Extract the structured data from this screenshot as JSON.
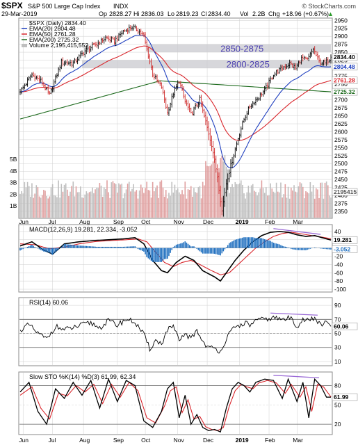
{
  "header": {
    "symbol": "$SPX",
    "name": "S&P 500 Large Cap Index",
    "exchange": "INDX",
    "watermark": "© StockCharts.com",
    "date": "29-Mar-2019",
    "op_label": "Op",
    "op": "2828.27",
    "hi_label": "Hi",
    "hi": "2836.03",
    "lo_label": "Lo",
    "lo": "2819.23",
    "cl_label": "Cl",
    "cl": "2834.40",
    "vol_label": "Vol",
    "vol": "2.2B",
    "chg_label": "Chg",
    "chg": "+18.96 (+0.67%)",
    "up_arrow": "▲"
  },
  "colors": {
    "price": "#000000",
    "ema20": "#1f3fbf",
    "ema50": "#d9252b",
    "ema200": "#1e6b1e",
    "zone": "#c9c9cf",
    "zone_text": "#4a3fb0",
    "vol_up": "#bfbfbf",
    "vol_down": "#e0a0a0",
    "macd": "#000000",
    "signal": "#d9252b",
    "hist": "#1f6fbf",
    "rsi": "#000000",
    "stok": "#000000",
    "stod": "#d9252b",
    "divergence": "#9a6ad6",
    "grid": "#cfcfcf"
  },
  "chart_data": [
    {
      "type": "line",
      "panel": "price",
      "title": "$SPX (Daily) 2834.40",
      "y_range": [
        2330,
        2955
      ],
      "y_ticks": [
        2350,
        2375,
        2400,
        2425,
        2450,
        2475,
        2500,
        2525,
        2550,
        2575,
        2600,
        2625,
        2650,
        2675,
        2700,
        2725,
        2750,
        2775,
        2800,
        2825,
        2850,
        2875,
        2900,
        2925,
        2950
      ],
      "y_tick_labels": [
        "2350",
        "2375",
        "2400",
        "2425",
        "2450",
        "2475",
        "2500",
        "2525",
        "2550",
        "2575",
        "2600",
        "2625",
        "2650",
        "2675",
        "2700",
        "2725",
        "2750",
        "2775",
        "2800",
        "2825",
        "2850",
        "2875",
        "2900",
        "2925",
        "2950"
      ],
      "x_labels": [
        "Jun",
        "Jul",
        "Aug",
        "Sep",
        "Oct",
        "Nov",
        "Dec",
        "2019",
        "Feb",
        "Mar"
      ],
      "x_label_days": [
        2,
        22,
        43,
        66,
        85,
        107,
        127,
        149,
        169,
        188
      ],
      "close_keypoints": [
        [
          0,
          2725
        ],
        [
          8,
          2780
        ],
        [
          14,
          2760
        ],
        [
          20,
          2715
        ],
        [
          28,
          2820
        ],
        [
          36,
          2815
        ],
        [
          44,
          2855
        ],
        [
          52,
          2875
        ],
        [
          58,
          2895
        ],
        [
          64,
          2885
        ],
        [
          70,
          2915
        ],
        [
          76,
          2930
        ],
        [
          80,
          2920
        ],
        [
          84,
          2900
        ],
        [
          90,
          2780
        ],
        [
          96,
          2740
        ],
        [
          100,
          2660
        ],
        [
          104,
          2720
        ],
        [
          108,
          2760
        ],
        [
          112,
          2695
        ],
        [
          116,
          2655
        ],
        [
          122,
          2700
        ],
        [
          126,
          2630
        ],
        [
          130,
          2560
        ],
        [
          134,
          2460
        ],
        [
          137,
          2350
        ],
        [
          140,
          2440
        ],
        [
          144,
          2510
        ],
        [
          148,
          2580
        ],
        [
          152,
          2640
        ],
        [
          156,
          2680
        ],
        [
          160,
          2700
        ],
        [
          166,
          2730
        ],
        [
          172,
          2780
        ],
        [
          178,
          2800
        ],
        [
          183,
          2815
        ],
        [
          187,
          2800
        ],
        [
          191,
          2830
        ],
        [
          195,
          2825
        ],
        [
          199,
          2860
        ],
        [
          203,
          2820
        ],
        [
          207,
          2815
        ],
        [
          211,
          2834.4
        ]
      ],
      "ema20": {
        "name": "EMA(20) 2804.48",
        "last": 2804.48
      },
      "ema50": {
        "name": "EMA(50) 2761.28",
        "last": 2761.28
      },
      "ema200": {
        "name": "EMA(200) 2725.32",
        "last": 2725.32
      },
      "volume": {
        "name": "Volume 2,195,415,552",
        "last_label": "2195415",
        "axis_labels": [
          "5B",
          "4B",
          "3B",
          "2B",
          "1B"
        ],
        "axis_values": [
          5,
          4,
          3,
          2,
          1
        ],
        "max": 5.6
      },
      "last_price_label": "2834.40",
      "ema20_label": "2804.48",
      "ema50_label": "2761.28",
      "ema200_label": "2725.32",
      "zones": [
        {
          "label": "2850-2875",
          "from": 2850,
          "to": 2875,
          "start_day": 86
        },
        {
          "label": "2800-2825",
          "from": 2800,
          "to": 2825,
          "start_day": 42
        }
      ]
    },
    {
      "type": "line",
      "panel": "macd",
      "title": "MACD(12,26,9) 19.281, 22.334, -3.052",
      "y_range": [
        -105,
        55
      ],
      "y_ticks": [
        40,
        20,
        -20,
        -40,
        -60,
        -80,
        -100
      ],
      "y_tick_labels": [
        "40",
        "20",
        "-20",
        "-40",
        "-60",
        "-80",
        "-100"
      ],
      "macd_keypoints": [
        [
          0,
          5
        ],
        [
          8,
          15
        ],
        [
          16,
          -5
        ],
        [
          22,
          -15
        ],
        [
          30,
          10
        ],
        [
          40,
          15
        ],
        [
          50,
          18
        ],
        [
          60,
          20
        ],
        [
          70,
          22
        ],
        [
          78,
          25
        ],
        [
          84,
          10
        ],
        [
          90,
          -30
        ],
        [
          96,
          -55
        ],
        [
          100,
          -60
        ],
        [
          106,
          -35
        ],
        [
          112,
          -20
        ],
        [
          118,
          -30
        ],
        [
          124,
          -55
        ],
        [
          132,
          -70
        ],
        [
          136,
          -80
        ],
        [
          140,
          -60
        ],
        [
          146,
          -30
        ],
        [
          152,
          -5
        ],
        [
          158,
          15
        ],
        [
          164,
          30
        ],
        [
          170,
          38
        ],
        [
          176,
          40
        ],
        [
          182,
          38
        ],
        [
          188,
          32
        ],
        [
          194,
          28
        ],
        [
          200,
          30
        ],
        [
          206,
          24
        ],
        [
          211,
          19.281
        ]
      ],
      "signal_keypoints": [
        [
          0,
          10
        ],
        [
          10,
          8
        ],
        [
          20,
          -2
        ],
        [
          30,
          2
        ],
        [
          40,
          10
        ],
        [
          52,
          16
        ],
        [
          62,
          18
        ],
        [
          72,
          20
        ],
        [
          80,
          22
        ],
        [
          86,
          15
        ],
        [
          92,
          -10
        ],
        [
          98,
          -35
        ],
        [
          104,
          -45
        ],
        [
          110,
          -35
        ],
        [
          116,
          -30
        ],
        [
          122,
          -40
        ],
        [
          130,
          -55
        ],
        [
          136,
          -65
        ],
        [
          142,
          -60
        ],
        [
          148,
          -40
        ],
        [
          154,
          -20
        ],
        [
          160,
          0
        ],
        [
          166,
          15
        ],
        [
          172,
          28
        ],
        [
          178,
          35
        ],
        [
          184,
          38
        ],
        [
          190,
          35
        ],
        [
          198,
          30
        ],
        [
          204,
          27
        ],
        [
          211,
          22.334
        ]
      ],
      "macd_label": "19.281",
      "hist_label": "-3.052"
    },
    {
      "type": "line",
      "panel": "rsi",
      "title": "RSI(14) 60.06",
      "y_range": [
        5,
        100
      ],
      "y_ticks": [
        90,
        70,
        50,
        30,
        10
      ],
      "y_tick_labels": [
        "90",
        "70",
        "50",
        "30",
        "10"
      ],
      "rsi_keypoints": [
        [
          0,
          55
        ],
        [
          6,
          62
        ],
        [
          12,
          50
        ],
        [
          18,
          42
        ],
        [
          24,
          60
        ],
        [
          30,
          55
        ],
        [
          36,
          58
        ],
        [
          42,
          62
        ],
        [
          48,
          65
        ],
        [
          54,
          58
        ],
        [
          60,
          68
        ],
        [
          66,
          62
        ],
        [
          72,
          70
        ],
        [
          78,
          66
        ],
        [
          84,
          48
        ],
        [
          88,
          28
        ],
        [
          92,
          40
        ],
        [
          96,
          35
        ],
        [
          100,
          55
        ],
        [
          104,
          60
        ],
        [
          108,
          38
        ],
        [
          112,
          50
        ],
        [
          116,
          42
        ],
        [
          120,
          55
        ],
        [
          124,
          38
        ],
        [
          128,
          30
        ],
        [
          132,
          28
        ],
        [
          136,
          25
        ],
        [
          140,
          42
        ],
        [
          144,
          55
        ],
        [
          148,
          60
        ],
        [
          152,
          65
        ],
        [
          156,
          62
        ],
        [
          160,
          68
        ],
        [
          166,
          70
        ],
        [
          172,
          72
        ],
        [
          178,
          70
        ],
        [
          184,
          72
        ],
        [
          188,
          60
        ],
        [
          192,
          70
        ],
        [
          196,
          68
        ],
        [
          200,
          72
        ],
        [
          204,
          62
        ],
        [
          208,
          65
        ],
        [
          211,
          60.06
        ]
      ],
      "last_label": "60.06"
    },
    {
      "type": "line",
      "panel": "stochastic",
      "title": "Slow STO %K(14) %D(3) 61.99, 62.34",
      "y_range": [
        5,
        100
      ],
      "y_ticks": [
        80,
        50,
        20
      ],
      "y_tick_labels": [
        "80",
        "50",
        "20"
      ],
      "k_keypoints": [
        [
          0,
          70
        ],
        [
          6,
          85
        ],
        [
          12,
          40
        ],
        [
          18,
          20
        ],
        [
          24,
          75
        ],
        [
          30,
          60
        ],
        [
          36,
          85
        ],
        [
          42,
          65
        ],
        [
          48,
          88
        ],
        [
          54,
          45
        ],
        [
          60,
          90
        ],
        [
          66,
          55
        ],
        [
          72,
          88
        ],
        [
          78,
          80
        ],
        [
          84,
          25
        ],
        [
          90,
          15
        ],
        [
          96,
          40
        ],
        [
          100,
          75
        ],
        [
          104,
          85
        ],
        [
          108,
          30
        ],
        [
          112,
          65
        ],
        [
          116,
          20
        ],
        [
          120,
          35
        ],
        [
          124,
          15
        ],
        [
          128,
          10
        ],
        [
          132,
          12
        ],
        [
          136,
          8
        ],
        [
          140,
          45
        ],
        [
          144,
          75
        ],
        [
          148,
          85
        ],
        [
          152,
          80
        ],
        [
          156,
          70
        ],
        [
          160,
          85
        ],
        [
          166,
          90
        ],
        [
          172,
          88
        ],
        [
          178,
          60
        ],
        [
          182,
          90
        ],
        [
          188,
          55
        ],
        [
          192,
          85
        ],
        [
          196,
          30
        ],
        [
          200,
          90
        ],
        [
          204,
          80
        ],
        [
          208,
          62
        ],
        [
          211,
          61.99
        ]
      ],
      "d_keypoints": [
        [
          0,
          65
        ],
        [
          8,
          78
        ],
        [
          14,
          45
        ],
        [
          20,
          28
        ],
        [
          26,
          68
        ],
        [
          32,
          64
        ],
        [
          38,
          80
        ],
        [
          44,
          70
        ],
        [
          50,
          82
        ],
        [
          56,
          52
        ],
        [
          62,
          82
        ],
        [
          68,
          62
        ],
        [
          74,
          85
        ],
        [
          80,
          72
        ],
        [
          86,
          30
        ],
        [
          92,
          22
        ],
        [
          98,
          48
        ],
        [
          102,
          72
        ],
        [
          106,
          78
        ],
        [
          110,
          38
        ],
        [
          114,
          58
        ],
        [
          118,
          28
        ],
        [
          122,
          32
        ],
        [
          126,
          16
        ],
        [
          130,
          12
        ],
        [
          134,
          10
        ],
        [
          138,
          15
        ],
        [
          142,
          48
        ],
        [
          146,
          72
        ],
        [
          150,
          82
        ],
        [
          154,
          78
        ],
        [
          158,
          75
        ],
        [
          162,
          84
        ],
        [
          168,
          88
        ],
        [
          174,
          84
        ],
        [
          180,
          68
        ],
        [
          184,
          82
        ],
        [
          190,
          62
        ],
        [
          194,
          78
        ],
        [
          198,
          40
        ],
        [
          202,
          82
        ],
        [
          206,
          78
        ],
        [
          211,
          62.34
        ]
      ],
      "last_label": "61.99"
    }
  ]
}
